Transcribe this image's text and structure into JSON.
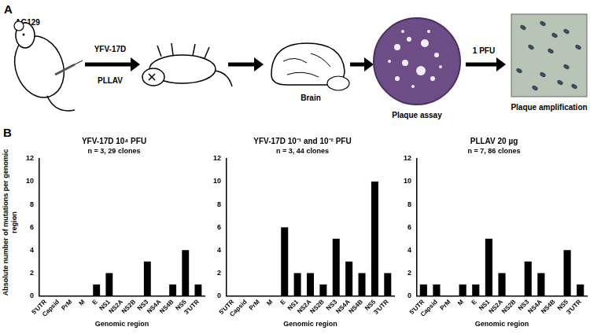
{
  "panel_a": {
    "label": "A",
    "mouse_strain": "AG129",
    "inoculum_top": "YFV-17D",
    "inoculum_bottom": "PLLAV",
    "organ": "Brain",
    "assay": "Plaque assay",
    "arrow_label": "1 PFU",
    "final_step": "Plaque amplification"
  },
  "panel_b_label": "B",
  "chart_data": [
    {
      "type": "bar",
      "title": "YFV-17D 10⁴ PFU",
      "subtitle": "n = 3, 29 clones",
      "y_label": "Absolute number of mutations per genomic region",
      "x_label": "Genomic region",
      "categories": [
        "5'UTR",
        "Capsid",
        "PrM",
        "M",
        "E",
        "NS1",
        "NS2A",
        "NS2B",
        "NS3",
        "NS4A",
        "NS4B",
        "NS5",
        "3'UTR"
      ],
      "values": [
        0,
        0,
        0,
        0,
        1,
        2,
        0,
        0,
        3,
        0,
        1,
        4,
        1
      ],
      "color": "#000000",
      "ylim": [
        0,
        12
      ],
      "yticks": [
        0,
        2,
        4,
        6,
        8,
        10,
        12
      ],
      "grid": false
    },
    {
      "type": "bar",
      "title": "YFV-17D 10⁻¹ and 10⁻² PFU",
      "subtitle": "n = 3, 44 clones",
      "x_label": "Genomic region",
      "categories": [
        "5'UTR",
        "Capsid",
        "PrM",
        "M",
        "E",
        "NS1",
        "NS2A",
        "NS2B",
        "NS3",
        "NS4A",
        "NS4B",
        "NS5",
        "3'UTR"
      ],
      "values": [
        0,
        0,
        0,
        0,
        6,
        2,
        2,
        1,
        5,
        3,
        2,
        10,
        2
      ],
      "color": "#000000",
      "ylim": [
        0,
        12
      ],
      "yticks": [
        0,
        2,
        4,
        6,
        8,
        10,
        12
      ],
      "grid": false
    },
    {
      "type": "bar",
      "title": "PLLAV 20 µg",
      "subtitle": "n = 7, 86 clones",
      "x_label": "Genomic region",
      "categories": [
        "5'UTR",
        "Capsid",
        "PrM",
        "M",
        "E",
        "NS1",
        "NS2A",
        "NS2B",
        "NS3",
        "NS4A",
        "NS4B",
        "NS5",
        "3'UTR"
      ],
      "values": [
        1,
        1,
        0,
        1,
        1,
        5,
        2,
        0,
        3,
        2,
        0,
        4,
        1
      ],
      "color": "#000000",
      "ylim": [
        0,
        12
      ],
      "yticks": [
        0,
        2,
        4,
        6,
        8,
        10,
        12
      ],
      "grid": false
    }
  ]
}
